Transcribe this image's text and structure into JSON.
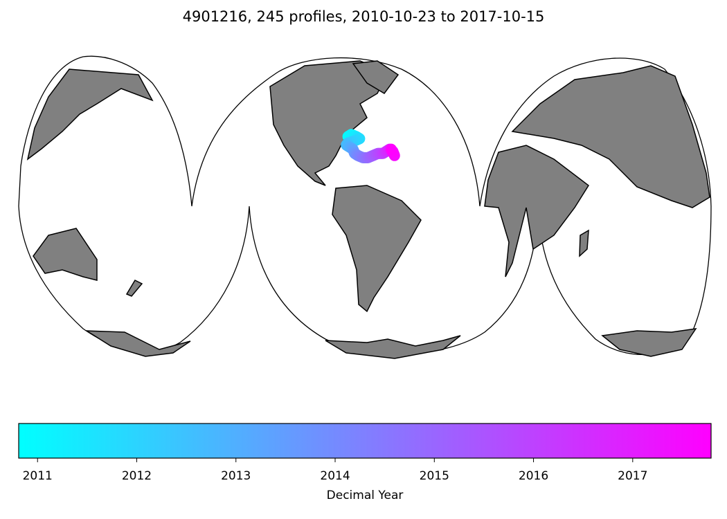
{
  "title": "4901216, 245 profiles, 2010-10-23 to 2017-10-15",
  "chart_data": {
    "type": "scatter",
    "projection": "interrupted Goode homolosine",
    "title": "4901216, 245 profiles, 2010-10-23 to 2017-10-15",
    "land_color": "#808080",
    "colormap": [
      "#00ffff",
      "#ff00ff"
    ],
    "colorbar": {
      "label": "Decimal Year",
      "range": [
        2010.81,
        2017.79
      ],
      "ticks": [
        "2011",
        "2012",
        "2013",
        "2014",
        "2015",
        "2016",
        "2017"
      ],
      "tick_values": [
        2011,
        2012,
        2013,
        2014,
        2015,
        2016,
        2017
      ]
    },
    "trajectory": [
      {
        "lon": -71,
        "lat": 33,
        "year": 2010.81
      },
      {
        "lon": -69,
        "lat": 34,
        "year": 2011.1
      },
      {
        "lon": -66,
        "lat": 33,
        "year": 2011.4
      },
      {
        "lon": -64,
        "lat": 32,
        "year": 2011.7
      },
      {
        "lon": -67,
        "lat": 31,
        "year": 2012.0
      },
      {
        "lon": -71,
        "lat": 30,
        "year": 2012.3
      },
      {
        "lon": -72,
        "lat": 29,
        "year": 2012.6
      },
      {
        "lon": -70,
        "lat": 28,
        "year": 2012.9
      },
      {
        "lon": -68,
        "lat": 27,
        "year": 2013.2
      },
      {
        "lon": -67,
        "lat": 25,
        "year": 2013.6
      },
      {
        "lon": -65,
        "lat": 24,
        "year": 2014.0
      },
      {
        "lon": -62,
        "lat": 23,
        "year": 2014.4
      },
      {
        "lon": -59,
        "lat": 23,
        "year": 2014.8
      },
      {
        "lon": -56,
        "lat": 24,
        "year": 2015.2
      },
      {
        "lon": -53,
        "lat": 25,
        "year": 2015.6
      },
      {
        "lon": -50,
        "lat": 25,
        "year": 2016.0
      },
      {
        "lon": -48,
        "lat": 26,
        "year": 2016.4
      },
      {
        "lon": -46,
        "lat": 27,
        "year": 2016.8
      },
      {
        "lon": -44,
        "lat": 26,
        "year": 2017.2
      },
      {
        "lon": -43,
        "lat": 24,
        "year": 2017.5
      },
      {
        "lon": -45,
        "lat": 27,
        "year": 2017.79
      }
    ]
  }
}
